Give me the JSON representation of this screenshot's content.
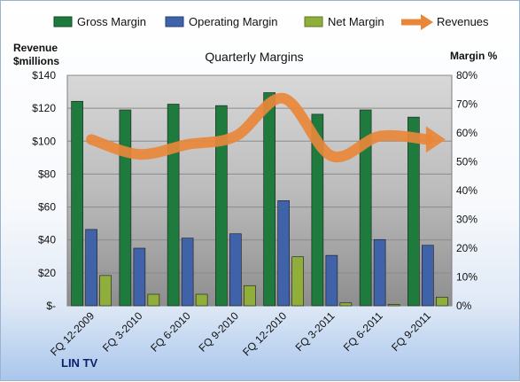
{
  "chart_data": {
    "type": "bar",
    "title": "Quarterly Margins",
    "ylabel_left_line1": "Revenue",
    "ylabel_left_line2": "$millions",
    "ylabel_right": "Margin %",
    "brand": "LIN TV",
    "categories": [
      "FQ 12-2009",
      "FQ 3-2010",
      "FQ 6-2010",
      "FQ 9-2010",
      "FQ 12-2010",
      "FQ 3-2011",
      "FQ 6-2011",
      "FQ 9-2011"
    ],
    "left_axis": {
      "min": 0,
      "max": 140,
      "step": 20,
      "tick_labels": [
        "$-",
        "$20",
        "$40",
        "$60",
        "$80",
        "$100",
        "$120",
        "$140"
      ]
    },
    "right_axis": {
      "min": 0,
      "max": 80,
      "step": 10,
      "tick_labels": [
        "0%",
        "10%",
        "20%",
        "30%",
        "40%",
        "50%",
        "60%",
        "70%",
        "80%"
      ]
    },
    "grid": true,
    "legend_position": "top",
    "series": [
      {
        "name": "Gross Margin",
        "axis": "right",
        "kind": "bar",
        "color": "#1f7a3e",
        "values": [
          71,
          68,
          70,
          69.5,
          74,
          66.5,
          68,
          65.5
        ]
      },
      {
        "name": "Operating Margin",
        "axis": "right",
        "kind": "bar",
        "color": "#3f62a8",
        "values": [
          26.5,
          20,
          23.5,
          25,
          36.5,
          17.5,
          23,
          21
        ]
      },
      {
        "name": "Net Margin",
        "axis": "right",
        "kind": "bar",
        "color": "#8fae3c",
        "values": [
          10.5,
          4,
          4,
          7,
          17,
          1,
          0.5,
          3
        ]
      },
      {
        "name": "Revenues",
        "axis": "left",
        "kind": "line",
        "color": "#e8873a",
        "values": [
          101,
          92,
          98,
          103,
          126,
          91,
          103,
          101
        ]
      }
    ]
  }
}
